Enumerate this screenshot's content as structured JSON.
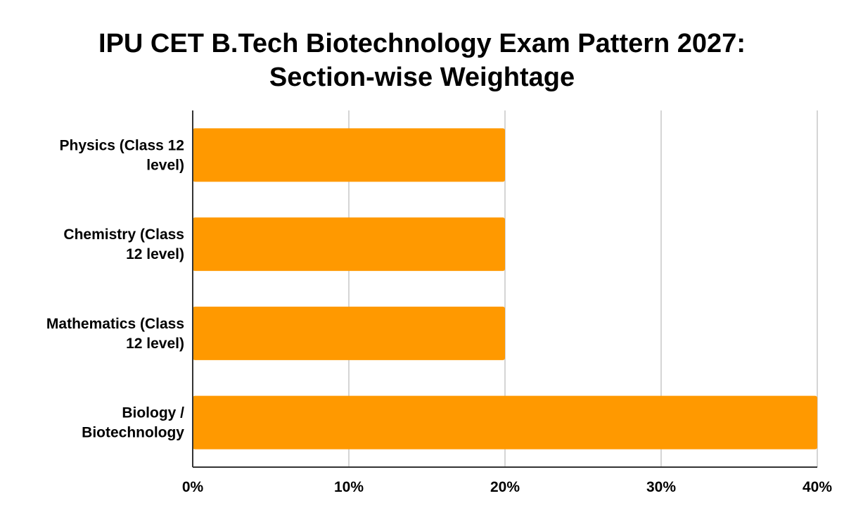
{
  "chart_data": {
    "type": "bar",
    "orientation": "horizontal",
    "title_lines": [
      "IPU CET B.Tech Biotechnology Exam Pattern 2027:",
      "Section-wise Weightage"
    ],
    "categories": [
      [
        "Physics (Class 12",
        "level)"
      ],
      [
        "Chemistry (Class",
        "12 level)"
      ],
      [
        "Mathematics (Class",
        "12 level)"
      ],
      [
        "Biology /",
        "Biotechnology"
      ]
    ],
    "values": [
      20,
      20,
      20,
      40
    ],
    "xlim": [
      0,
      40
    ],
    "x_ticks": [
      0,
      10,
      20,
      30,
      40
    ],
    "x_tick_labels": [
      "0%",
      "10%",
      "20%",
      "30%",
      "40%"
    ],
    "xlabel": "",
    "ylabel": "",
    "bar_color": "#ff9900",
    "grid": true,
    "legend": "none"
  }
}
